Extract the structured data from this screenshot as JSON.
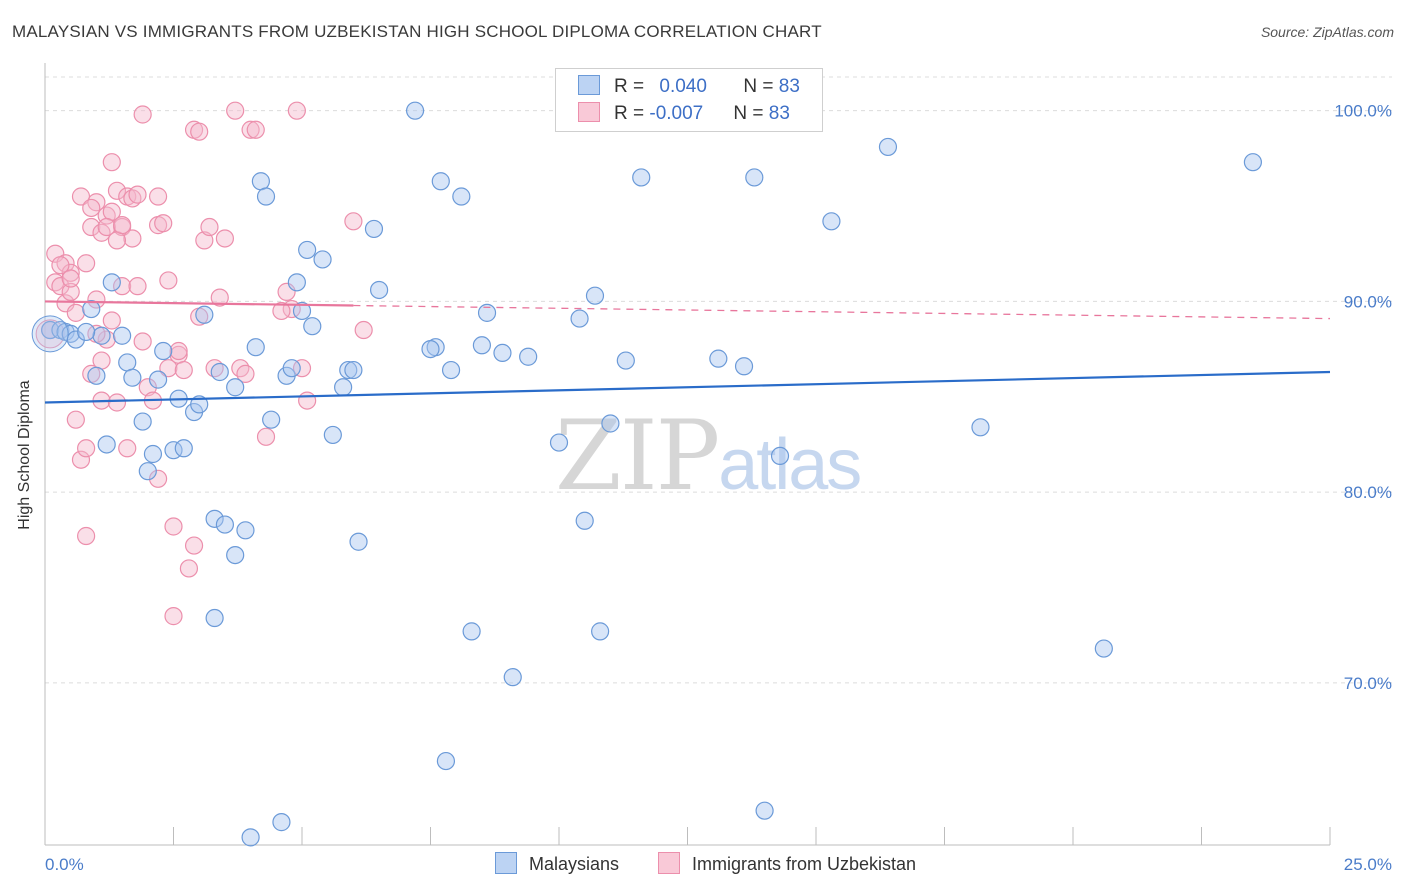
{
  "title": "MALAYSIAN VS IMMIGRANTS FROM UZBEKISTAN HIGH SCHOOL DIPLOMA CORRELATION CHART",
  "source": "Source: ZipAtlas.com",
  "watermark": {
    "zip": "ZIP",
    "atlas": "atlas"
  },
  "legend_top": {
    "rows": [
      {
        "r_label": "R = ",
        "r_value": "0.040",
        "n_label": "N = ",
        "n_value": "83"
      },
      {
        "r_label": "R = ",
        "r_value": "-0.007",
        "n_label": "N = ",
        "n_value": "83"
      }
    ]
  },
  "legend_bottom": {
    "malaysians": "Malaysians",
    "uzbekistan": "Immigrants from Uzbekistan"
  },
  "colors": {
    "blue_fill": "#a9c6ef",
    "blue_stroke": "#6b9ad8",
    "blue_line": "#2a6cc9",
    "pink_fill": "#f5b8cb",
    "pink_stroke": "#ec8fac",
    "pink_line": "#e8769c",
    "grid": "#dcdcdc",
    "tick_text": "#4a7cc9"
  },
  "chart_data": {
    "type": "scatter",
    "title": "MALAYSIAN VS IMMIGRANTS FROM UZBEKISTAN HIGH SCHOOL DIPLOMA CORRELATION CHART",
    "xlabel": "",
    "ylabel": "High School Diploma",
    "xlim": [
      0,
      25
    ],
    "ylim": [
      61.5,
      102.5
    ],
    "x_tick_labels": [
      {
        "x": 0,
        "label": "0.0%"
      },
      {
        "x": 25,
        "label": "25.0%"
      }
    ],
    "x_minor_ticks": [
      0,
      2.5,
      5,
      7.5,
      10,
      12.5,
      15,
      17.5,
      20,
      22.5,
      25
    ],
    "y_ticks": [
      {
        "y": 100,
        "label": "100.0%"
      },
      {
        "y": 90,
        "label": "90.0%"
      },
      {
        "y": 80,
        "label": "80.0%"
      },
      {
        "y": 70,
        "label": "70.0%"
      }
    ],
    "series": [
      {
        "name": "Malaysians",
        "R": 0.04,
        "N": 83,
        "trend": {
          "x": [
            0,
            25
          ],
          "y": [
            84.7,
            86.3
          ],
          "dash_from": null
        },
        "points": [
          [
            0.1,
            88.5
          ],
          [
            0.3,
            88.5
          ],
          [
            0.4,
            88.4
          ],
          [
            0.5,
            88.3
          ],
          [
            0.6,
            88.0
          ],
          [
            1.1,
            88.2
          ],
          [
            0.8,
            88.4
          ],
          [
            1.3,
            91.0
          ],
          [
            1.0,
            86.1
          ],
          [
            1.6,
            86.8
          ],
          [
            1.2,
            82.5
          ],
          [
            1.7,
            86.0
          ],
          [
            1.9,
            83.7
          ],
          [
            2.0,
            81.1
          ],
          [
            2.1,
            82.0
          ],
          [
            2.3,
            87.4
          ],
          [
            2.5,
            82.2
          ],
          [
            2.6,
            84.9
          ],
          [
            2.7,
            82.3
          ],
          [
            2.9,
            84.2
          ],
          [
            3.0,
            84.6
          ],
          [
            3.1,
            89.3
          ],
          [
            3.3,
            73.4
          ],
          [
            3.3,
            78.6
          ],
          [
            3.5,
            78.3
          ],
          [
            3.4,
            86.3
          ],
          [
            3.7,
            85.5
          ],
          [
            3.7,
            76.7
          ],
          [
            3.9,
            78.0
          ],
          [
            4.0,
            61.9
          ],
          [
            4.1,
            87.6
          ],
          [
            4.2,
            96.3
          ],
          [
            4.3,
            95.5
          ],
          [
            4.4,
            83.8
          ],
          [
            4.6,
            62.7
          ],
          [
            4.7,
            86.1
          ],
          [
            4.8,
            86.5
          ],
          [
            4.9,
            91.0
          ],
          [
            5.0,
            89.5
          ],
          [
            5.1,
            92.7
          ],
          [
            5.2,
            88.7
          ],
          [
            5.4,
            92.2
          ],
          [
            5.6,
            83.0
          ],
          [
            5.8,
            85.5
          ],
          [
            5.9,
            86.4
          ],
          [
            6.1,
            77.4
          ],
          [
            6.4,
            93.8
          ],
          [
            6.5,
            90.6
          ],
          [
            7.2,
            100.0
          ],
          [
            7.7,
            96.3
          ],
          [
            7.6,
            87.6
          ],
          [
            7.8,
            65.9
          ],
          [
            7.9,
            86.4
          ],
          [
            8.1,
            95.5
          ],
          [
            8.3,
            72.7
          ],
          [
            8.5,
            87.7
          ],
          [
            8.6,
            89.4
          ],
          [
            8.9,
            87.3
          ],
          [
            9.1,
            70.3
          ],
          [
            9.4,
            87.1
          ],
          [
            10.0,
            82.6
          ],
          [
            10.4,
            89.1
          ],
          [
            10.5,
            78.5
          ],
          [
            10.7,
            90.3
          ],
          [
            10.8,
            72.7
          ],
          [
            11.0,
            83.6
          ],
          [
            11.3,
            86.9
          ],
          [
            11.6,
            96.5
          ],
          [
            13.1,
            87.0
          ],
          [
            13.6,
            86.6
          ],
          [
            13.8,
            96.5
          ],
          [
            14.0,
            63.3
          ],
          [
            14.3,
            81.9
          ],
          [
            15.3,
            94.2
          ],
          [
            16.4,
            98.1
          ],
          [
            18.2,
            83.4
          ],
          [
            20.6,
            71.8
          ],
          [
            23.5,
            97.3
          ],
          [
            0.9,
            89.6
          ],
          [
            2.2,
            85.9
          ],
          [
            6.0,
            86.4
          ],
          [
            7.5,
            87.5
          ],
          [
            1.5,
            88.2
          ]
        ]
      },
      {
        "name": "Immigrants from Uzbekistan",
        "R": -0.007,
        "N": 83,
        "trend": {
          "x": [
            0,
            25
          ],
          "y": [
            90.0,
            89.1
          ],
          "dash_from": 6.0
        },
        "points": [
          [
            0.1,
            88.5
          ],
          [
            0.2,
            91.0
          ],
          [
            0.2,
            92.5
          ],
          [
            0.3,
            90.8
          ],
          [
            0.4,
            92.0
          ],
          [
            0.4,
            89.9
          ],
          [
            0.5,
            91.5
          ],
          [
            0.5,
            90.5
          ],
          [
            0.6,
            83.8
          ],
          [
            0.6,
            89.4
          ],
          [
            0.7,
            81.7
          ],
          [
            0.7,
            95.5
          ],
          [
            0.8,
            92.0
          ],
          [
            0.8,
            77.7
          ],
          [
            0.8,
            82.3
          ],
          [
            0.9,
            93.9
          ],
          [
            0.9,
            86.2
          ],
          [
            1.0,
            90.1
          ],
          [
            1.0,
            95.2
          ],
          [
            1.1,
            84.8
          ],
          [
            1.1,
            93.6
          ],
          [
            1.1,
            86.9
          ],
          [
            1.2,
            94.5
          ],
          [
            1.2,
            88.0
          ],
          [
            1.3,
            97.3
          ],
          [
            1.3,
            94.7
          ],
          [
            1.3,
            89.0
          ],
          [
            1.4,
            95.8
          ],
          [
            1.4,
            84.7
          ],
          [
            1.5,
            90.8
          ],
          [
            1.5,
            93.9
          ],
          [
            1.6,
            95.5
          ],
          [
            1.6,
            82.3
          ],
          [
            1.7,
            95.4
          ],
          [
            1.7,
            93.3
          ],
          [
            1.8,
            95.6
          ],
          [
            1.8,
            90.8
          ],
          [
            1.9,
            99.8
          ],
          [
            1.9,
            87.9
          ],
          [
            2.0,
            85.5
          ],
          [
            2.1,
            84.8
          ],
          [
            2.2,
            94.0
          ],
          [
            2.2,
            80.7
          ],
          [
            2.3,
            94.1
          ],
          [
            2.4,
            86.5
          ],
          [
            2.4,
            91.1
          ],
          [
            2.5,
            78.2
          ],
          [
            2.5,
            73.5
          ],
          [
            2.6,
            87.2
          ],
          [
            2.7,
            86.4
          ],
          [
            2.8,
            76.0
          ],
          [
            2.9,
            77.2
          ],
          [
            3.0,
            89.2
          ],
          [
            3.1,
            93.2
          ],
          [
            3.2,
            93.9
          ],
          [
            3.3,
            86.5
          ],
          [
            3.4,
            90.2
          ],
          [
            3.5,
            93.3
          ],
          [
            3.7,
            100.0
          ],
          [
            3.8,
            86.5
          ],
          [
            4.0,
            99.0
          ],
          [
            4.1,
            99.0
          ],
          [
            4.3,
            82.9
          ],
          [
            4.7,
            90.5
          ],
          [
            4.8,
            89.6
          ],
          [
            4.9,
            100.0
          ],
          [
            5.0,
            86.5
          ],
          [
            5.1,
            84.8
          ],
          [
            6.0,
            94.2
          ],
          [
            6.2,
            88.5
          ],
          [
            3.9,
            86.2
          ],
          [
            2.6,
            87.4
          ],
          [
            0.3,
            91.9
          ],
          [
            0.5,
            91.2
          ],
          [
            0.9,
            94.9
          ],
          [
            1.0,
            88.3
          ],
          [
            1.2,
            93.9
          ],
          [
            1.4,
            93.2
          ],
          [
            1.5,
            94.0
          ],
          [
            2.2,
            95.5
          ],
          [
            2.9,
            99.0
          ],
          [
            3.0,
            98.9
          ],
          [
            4.6,
            89.5
          ]
        ]
      }
    ]
  }
}
